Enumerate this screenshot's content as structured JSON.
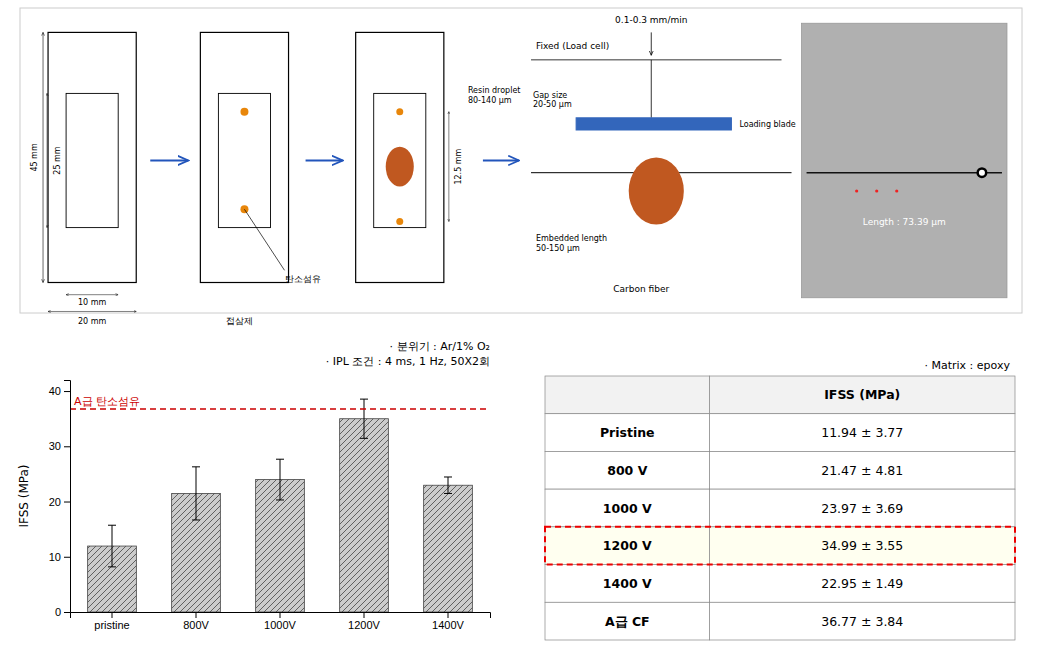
{
  "chart_data": [
    {
      "type": "diagram",
      "annotations": [
        "45 mm",
        "25 mm",
        "10 mm",
        "20 mm",
        "탄소섬유",
        "접삼제",
        "12.5 mm",
        "Resin droplet\n80-140 μm",
        "0.1-0.3 mm/min",
        "Fixed (Load cell)",
        "Gap size\n20-50 μm",
        "Loading blade",
        "Embedded length\n50-150 μm",
        "Carbon fiber",
        "Length : 73.39 μm"
      ]
    },
    {
      "type": "bar",
      "categories": [
        "pristine",
        "800V",
        "1000V",
        "1200V",
        "1400V"
      ],
      "values": [
        11.94,
        21.47,
        23.97,
        34.99,
        22.95
      ],
      "errors": [
        3.77,
        4.81,
        3.69,
        3.55,
        1.49
      ],
      "color": "#CCCCCC",
      "ylabel": "IFSS (MPa)",
      "ylim": [
        0,
        42
      ],
      "yticks": [
        0,
        10,
        20,
        30,
        40
      ],
      "reference_line": {
        "value": 36.77,
        "label": "A급 탄소섬유",
        "color": "#CC0000"
      },
      "annotations": [
        "· 분위기 : Ar/1% O₂",
        "· IPL 조건 : 4 ms, 1 Hz, 50X2회"
      ]
    },
    {
      "type": "table",
      "annotations": [
        "· Matrix : epoxy"
      ],
      "columns": [
        null,
        "IFSS (MPa)"
      ],
      "rows": [
        [
          "Pristine",
          "11.94 ± 3.77"
        ],
        [
          "800 V",
          "21.47 ± 4.81"
        ],
        [
          "1000 V",
          "23.97 ± 3.69"
        ],
        [
          "1200 V",
          "34.99 ± 3.55"
        ],
        [
          "1400 V",
          "22.95 ± 1.49"
        ],
        [
          "A급 CF",
          "36.77 ± 3.84"
        ]
      ],
      "colors": [
        "#FFFFFF",
        "#FFFFFF",
        "#FFFFFF",
        "#FFFFF0",
        "#FFFFFF",
        "#FFFFFF"
      ],
      "color": "#EE0000"
    }
  ]
}
